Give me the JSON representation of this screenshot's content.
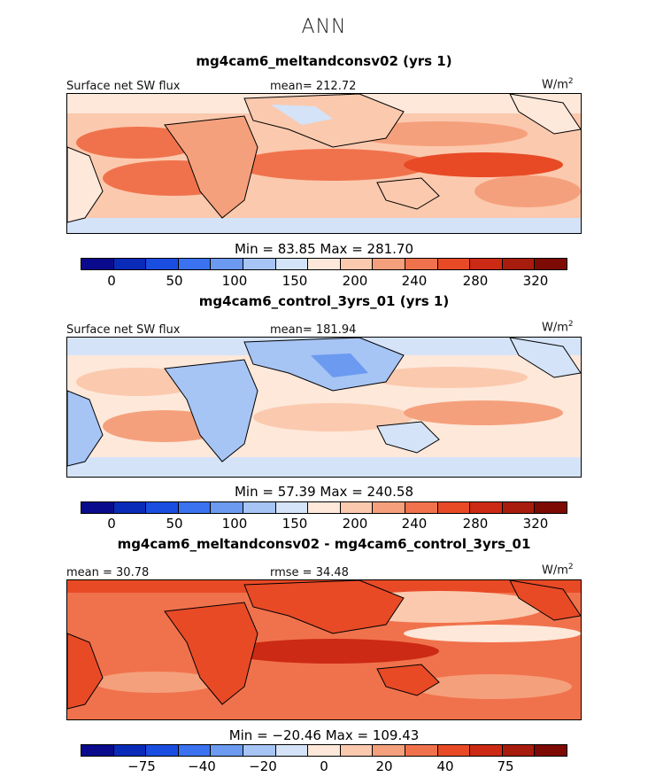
{
  "season": "ANN",
  "units_label": "W/m",
  "units_sup": "2",
  "panels": [
    {
      "title": "mg4cam6_meltandconsv02 (yrs 1)",
      "left_label": "Surface net SW flux",
      "mid_label": "mean= 212.72",
      "min_text": "Min =  83.85",
      "max_text": "Max = 281.70",
      "cbar_ticks": [
        "0",
        "50",
        "100",
        "150",
        "200",
        "240",
        "280",
        "320"
      ]
    },
    {
      "title": "mg4cam6_control_3yrs_01 (yrs 1)",
      "left_label": "Surface net SW flux",
      "mid_label": "mean= 181.94",
      "min_text": "Min =  57.39",
      "max_text": "Max = 240.58",
      "cbar_ticks": [
        "0",
        "50",
        "100",
        "150",
        "200",
        "240",
        "280",
        "320"
      ]
    },
    {
      "title": "mg4cam6_meltandconsv02 - mg4cam6_control_3yrs_01",
      "left_label": "mean =  30.78",
      "mid_label": "rmse =  34.48",
      "min_text": "Min = −20.46",
      "max_text": "Max = 109.43",
      "cbar_ticks": [
        "−75",
        "−40",
        "−20",
        "0",
        "20",
        "40",
        "75"
      ]
    }
  ],
  "chart_data": [
    {
      "type": "heatmap",
      "title": "mg4cam6_meltandconsv02 (yrs 1)",
      "variable": "Surface net SW flux",
      "units": "W/m2",
      "mean": 212.72,
      "min": 83.85,
      "max": 281.7,
      "levels": [
        0,
        25,
        50,
        75,
        100,
        125,
        150,
        175,
        200,
        220,
        240,
        260,
        280,
        300,
        320
      ]
    },
    {
      "type": "heatmap",
      "title": "mg4cam6_control_3yrs_01 (yrs 1)",
      "variable": "Surface net SW flux",
      "units": "W/m2",
      "mean": 181.94,
      "min": 57.39,
      "max": 240.58,
      "levels": [
        0,
        25,
        50,
        75,
        100,
        125,
        150,
        175,
        200,
        220,
        240,
        260,
        280,
        300,
        320
      ]
    },
    {
      "type": "heatmap",
      "title": "mg4cam6_meltandconsv02 - mg4cam6_control_3yrs_01",
      "units": "W/m2",
      "mean": 30.78,
      "rmse": 34.48,
      "min": -20.46,
      "max": 109.43,
      "levels": [
        -100,
        -75,
        -50,
        -40,
        -30,
        -20,
        -10,
        0,
        10,
        20,
        30,
        40,
        50,
        75,
        100
      ]
    }
  ],
  "colors": [
    "#0a0a8c",
    "#0a2ab8",
    "#1a4ee0",
    "#3a72f0",
    "#6b9af0",
    "#a6c4f4",
    "#d4e3f8",
    "#fde8da",
    "#fbc9ae",
    "#f5a07c",
    "#f0724c",
    "#e84a26",
    "#cc2a14",
    "#a81c0e",
    "#7e0a04"
  ],
  "palette": {
    "p1": [
      "#fbc9ae",
      "#f5a07c",
      "#f0724c",
      "#e84a26",
      "#fde8da"
    ],
    "p2": [
      "#d4e3f8",
      "#a6c4f4",
      "#6b9af0",
      "#fde8da",
      "#fbc9ae",
      "#f5a07c"
    ],
    "p3": [
      "#f0724c",
      "#e84a26",
      "#cc2a14",
      "#f5a07c",
      "#fbc9ae",
      "#fde8da",
      "#d4e3f8"
    ]
  }
}
